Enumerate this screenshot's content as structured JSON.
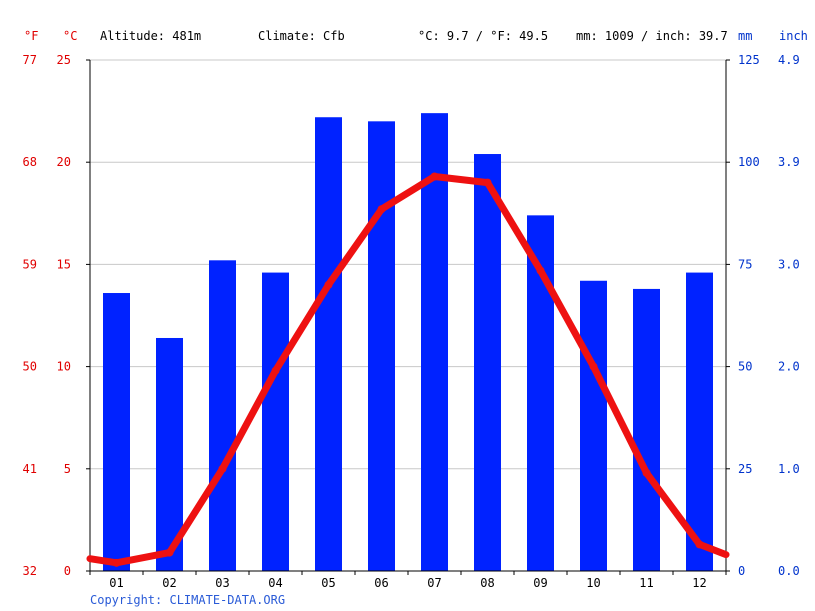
{
  "header": {
    "unit_f": "°F",
    "unit_c": "°C",
    "altitude": "Altitude: 481m",
    "climate": "Climate: Cfb",
    "temp_avg": "°C: 9.7 / °F: 49.5",
    "precip_total": "mm: 1009 / inch: 39.7",
    "unit_mm": "mm",
    "unit_inch": "inch"
  },
  "footer": {
    "copyright": "Copyright: CLIMATE-DATA.ORG"
  },
  "colors": {
    "temperature": "#ee1111",
    "precipitation": "#0022ff",
    "grid": "#c8c8c8",
    "left_axis_text": "#e00000",
    "right_axis_text": "#0033cc"
  },
  "chart_data": {
    "type": "bar",
    "categories": [
      "01",
      "02",
      "03",
      "04",
      "05",
      "06",
      "07",
      "08",
      "09",
      "10",
      "11",
      "12"
    ],
    "series": [
      {
        "type": "bar",
        "axis": "right",
        "unit": "mm",
        "values": [
          68,
          57,
          76,
          73,
          111,
          110,
          112,
          102,
          87,
          71,
          69,
          73
        ]
      },
      {
        "type": "line",
        "axis": "left",
        "unit": "°C",
        "values": [
          0.4,
          0.9,
          5.0,
          9.8,
          14.0,
          17.7,
          19.3,
          19.0,
          14.7,
          10.0,
          4.8,
          1.3
        ]
      }
    ],
    "left_axis_c": {
      "ticks": [
        "0",
        "5",
        "10",
        "15",
        "20",
        "25"
      ],
      "ylim": [
        0,
        25
      ]
    },
    "left_axis_f": {
      "ticks": [
        "32",
        "41",
        "50",
        "59",
        "68",
        "77"
      ]
    },
    "right_axis_mm": {
      "ticks": [
        "0",
        "25",
        "50",
        "75",
        "100",
        "125"
      ],
      "ylim": [
        0,
        125
      ]
    },
    "right_axis_inch": {
      "ticks": [
        "0.0",
        "1.0",
        "2.0",
        "3.0",
        "3.9",
        "4.9"
      ]
    },
    "line_edge_values": {
      "start": 0.6,
      "end": 0.8
    },
    "grid": true
  }
}
